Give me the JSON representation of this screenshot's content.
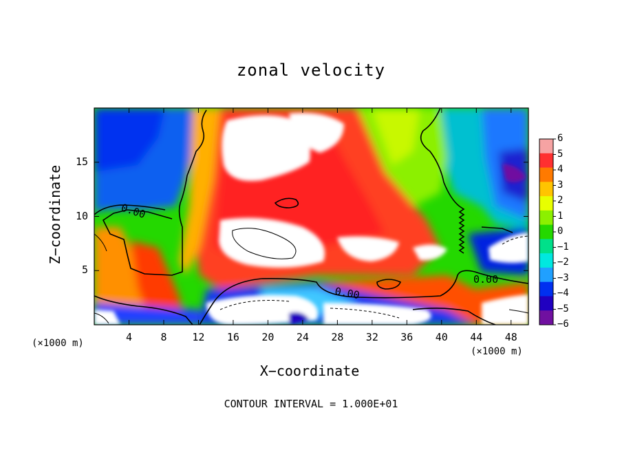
{
  "chart_data": {
    "type": "heatmap",
    "title": "zonal velocity",
    "xlabel": "X−coordinate",
    "ylabel": "Z−coordinate",
    "x_unit_left": "(×1000 m)",
    "x_unit_right": "(×1000 m)",
    "xlim": [
      0,
      50
    ],
    "ylim": [
      0,
      20
    ],
    "x_ticks": [
      "4",
      "8",
      "12",
      "16",
      "20",
      "24",
      "28",
      "32",
      "36",
      "40",
      "44",
      "48"
    ],
    "y_ticks": [
      "5",
      "10",
      "15"
    ],
    "colorbar": {
      "min": -6,
      "max": 6,
      "ticks": [
        "6",
        "5",
        "4",
        "3",
        "2",
        "1",
        "0",
        "−1",
        "−2",
        "−3",
        "−4",
        "−5",
        "−6"
      ],
      "colors": [
        "#f6a3a3",
        "#ff3030",
        "#ff7a00",
        "#ffc400",
        "#e8ff00",
        "#8cf000",
        "#24d800",
        "#00e08a",
        "#00e8e0",
        "#20a0ff",
        "#0030f0",
        "#2000c0",
        "#7010a0"
      ]
    },
    "contour_labels": [
      "0.00",
      "0.00",
      "0.00"
    ],
    "contour_interval": "CONTOUR INTERVAL = 1.000E+01"
  }
}
